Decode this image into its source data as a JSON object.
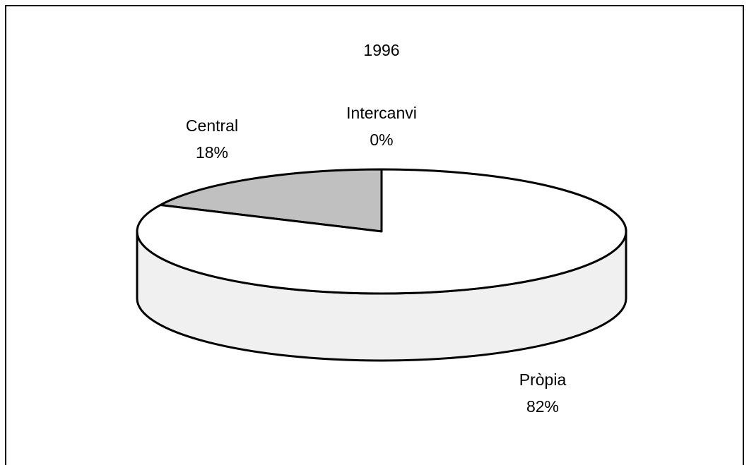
{
  "chart_data": {
    "type": "pie3d",
    "title": "1996",
    "categories": [
      "Intercanvi",
      "Central",
      "Pròpia"
    ],
    "values": [
      0,
      18,
      82
    ],
    "value_labels": [
      "0%",
      "18%",
      "82%"
    ],
    "colors": [
      "#808080",
      "#c0c0c0",
      "#ffffff"
    ]
  }
}
